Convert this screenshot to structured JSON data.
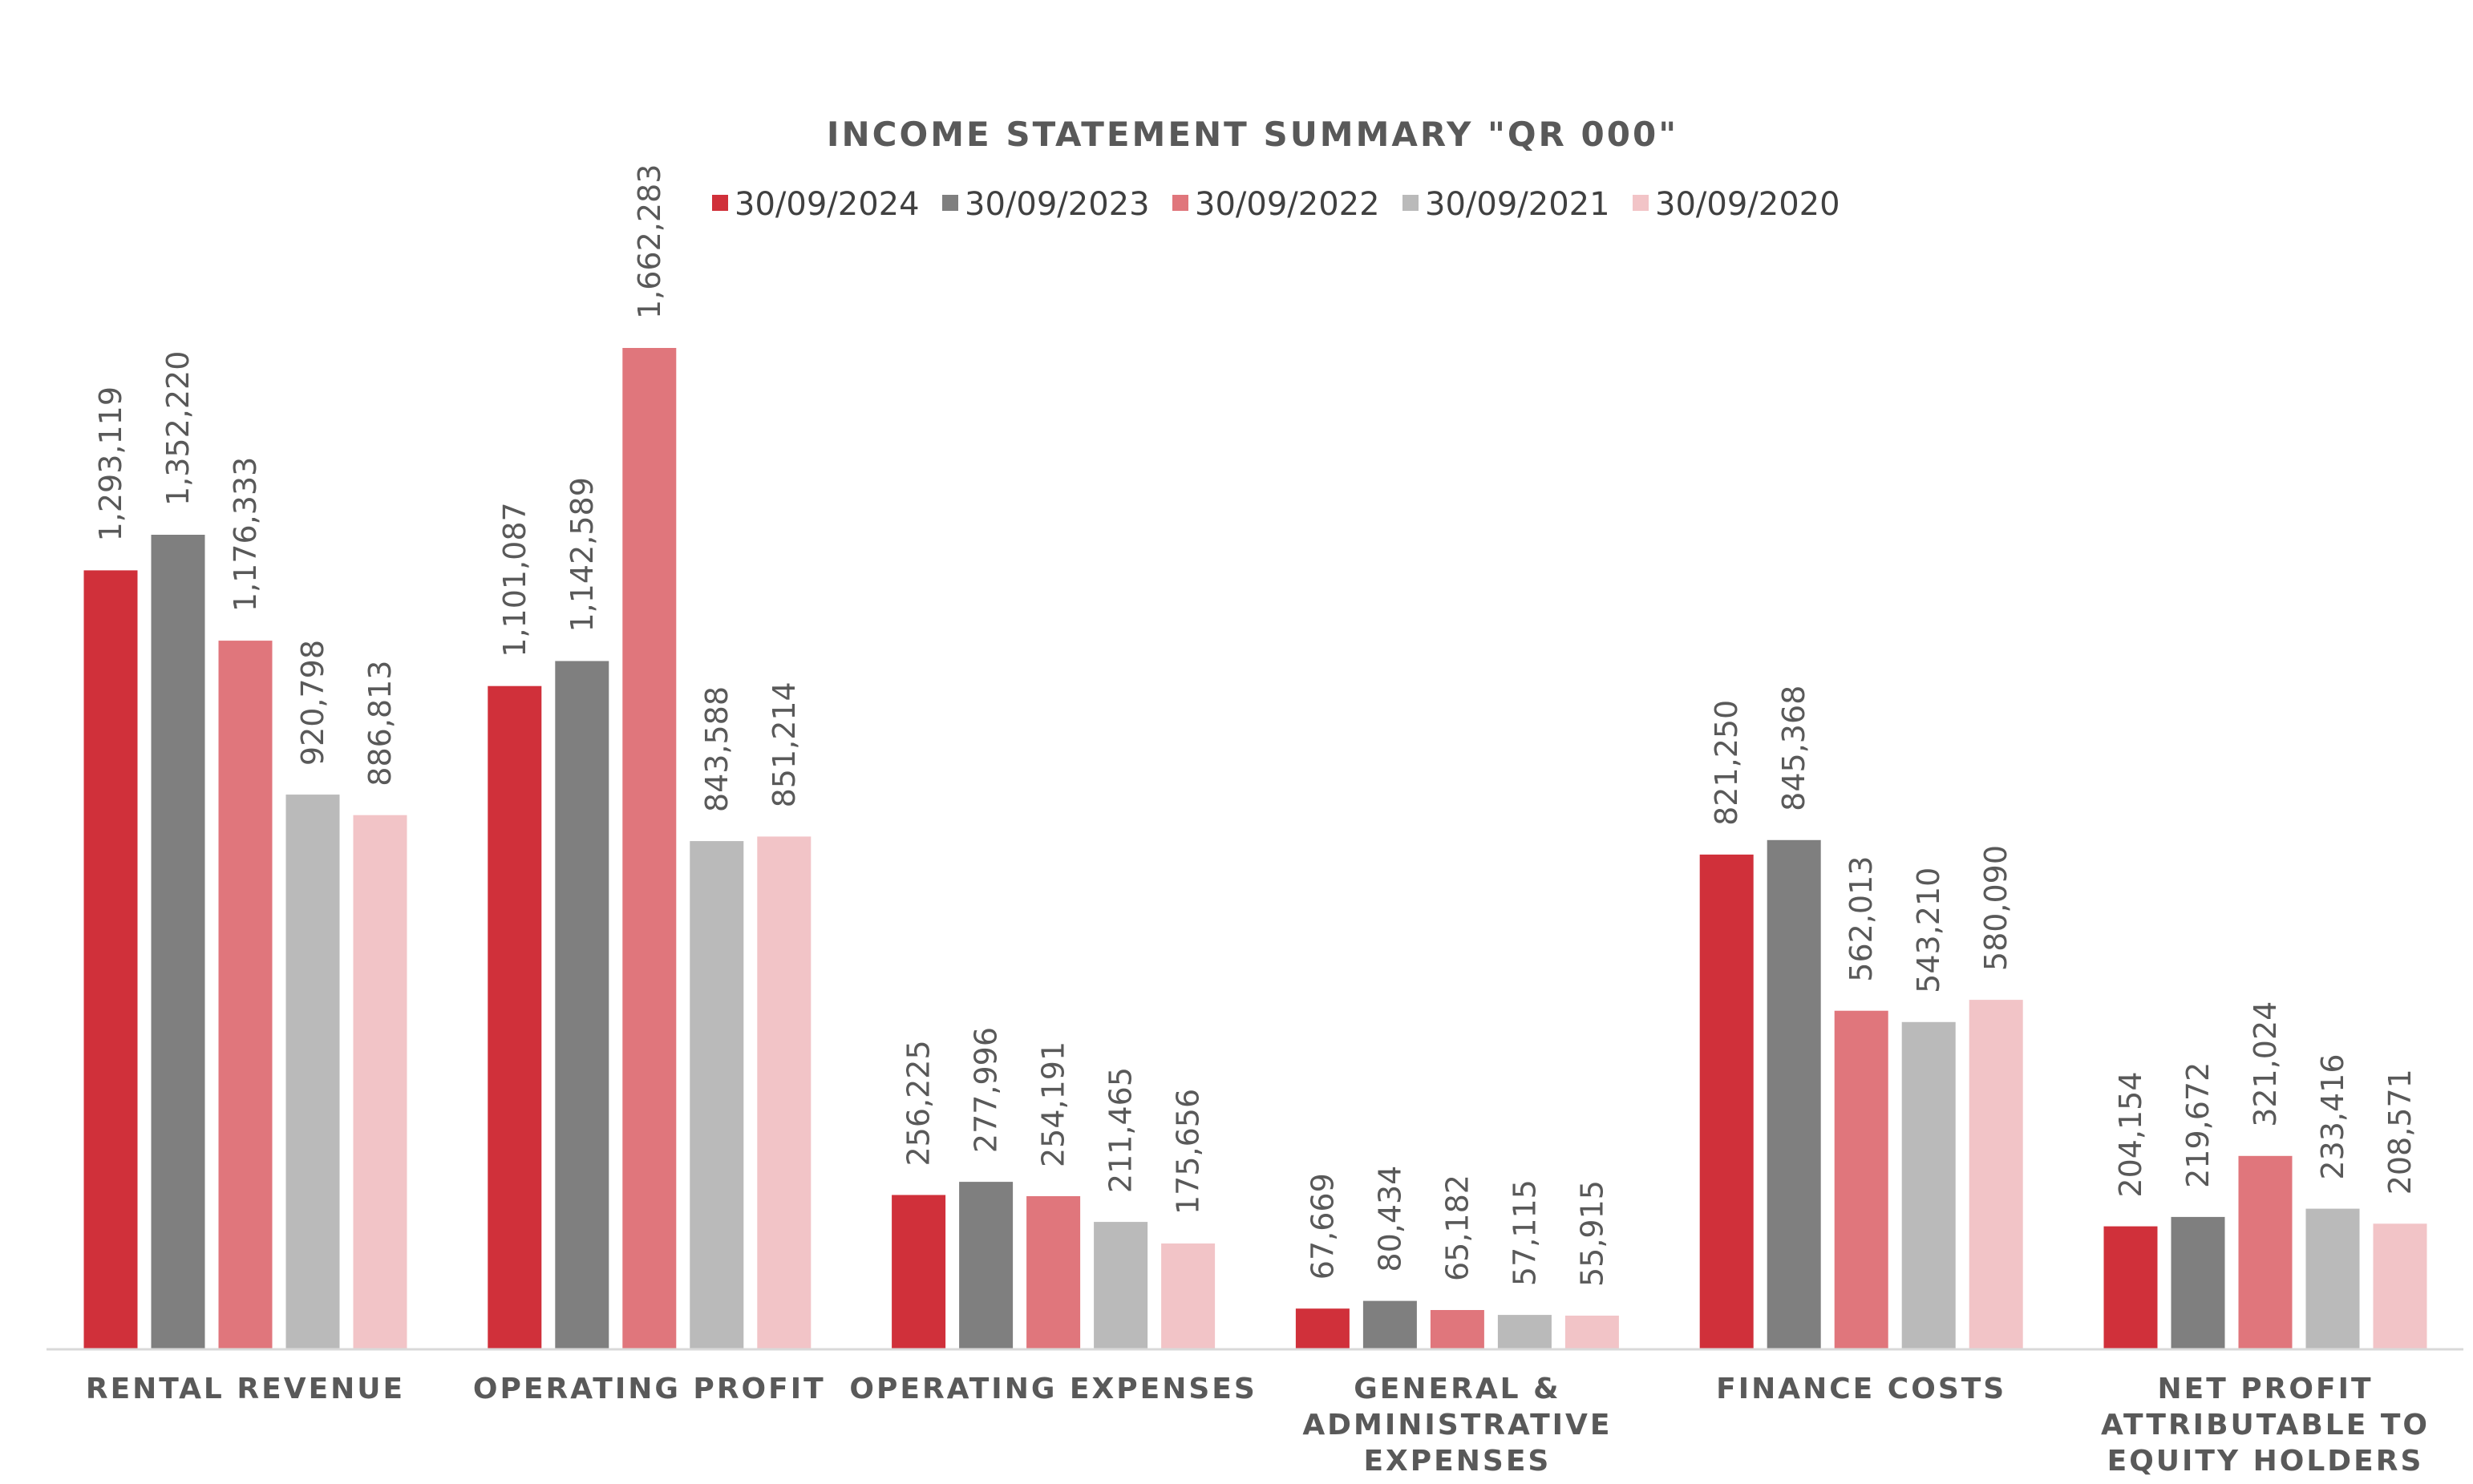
{
  "chart_data": {
    "type": "bar",
    "title": "INCOME STATEMENT SUMMARY \"QR 000\"",
    "categories": [
      [
        "RENTAL REVENUE"
      ],
      [
        "OPERATING PROFIT"
      ],
      [
        "OPERATING EXPENSES"
      ],
      [
        "GENERAL &",
        "ADMINISTRATIVE",
        "EXPENSES"
      ],
      [
        "FINANCE COSTS"
      ],
      [
        "NET PROFIT",
        "ATTRIBUTABLE TO",
        "EQUITY HOLDERS"
      ]
    ],
    "series": [
      {
        "name": "30/09/2024",
        "color": "#D0303A",
        "values": [
          1293119,
          1101087,
          256225,
          67669,
          821250,
          204154
        ]
      },
      {
        "name": "30/09/2023",
        "color": "#7F7F7F",
        "values": [
          1352220,
          1142589,
          277996,
          80434,
          845368,
          219672
        ]
      },
      {
        "name": "30/09/2022",
        "color": "#E0767C",
        "values": [
          1176333,
          1662283,
          254191,
          65182,
          562013,
          321024
        ]
      },
      {
        "name": "30/09/2021",
        "color": "#BABABA",
        "values": [
          920798,
          843588,
          211465,
          57115,
          543210,
          233416
        ]
      },
      {
        "name": "30/09/2020",
        "color": "#F2C4C7",
        "values": [
          886813,
          851214,
          175656,
          55915,
          580090,
          208571
        ]
      }
    ],
    "ylim": [
      0,
      1662283
    ],
    "grid": false,
    "legend_position": "top",
    "data_labels": "rotated-vertical"
  }
}
